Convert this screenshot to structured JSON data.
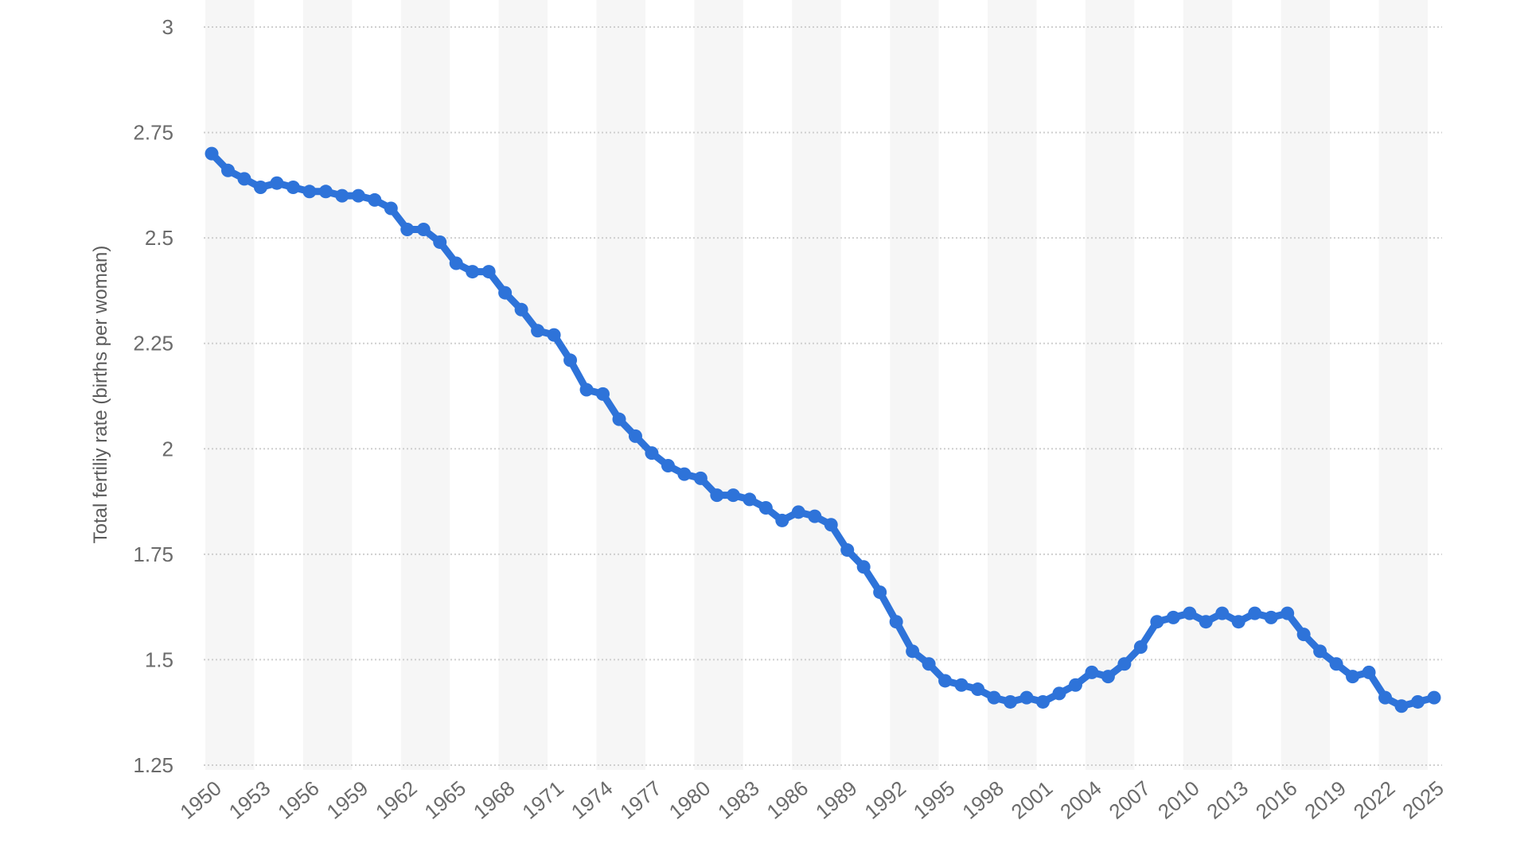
{
  "chart_data": {
    "type": "line",
    "title": "",
    "xlabel": "",
    "ylabel": "Total fertiliy rate (births per woman)",
    "ylim": [
      1.25,
      3
    ],
    "yticks": [
      "3",
      "2.75",
      "2.5",
      "2.25",
      "2",
      "1.75",
      "1.5",
      "1.25"
    ],
    "ytick_values": [
      3,
      2.75,
      2.5,
      2.25,
      2,
      1.75,
      1.5,
      1.25
    ],
    "xticks": [
      "1950",
      "1953",
      "1956",
      "1959",
      "1962",
      "1965",
      "1968",
      "1971",
      "1974",
      "1977",
      "1980",
      "1983",
      "1986",
      "1989",
      "1992",
      "1995",
      "1998",
      "2001",
      "2004",
      "2007",
      "2010",
      "2013",
      "2016",
      "2019",
      "2022",
      "2025"
    ],
    "xlim": [
      1950,
      2025
    ],
    "grid": true,
    "legend": "none",
    "color": "#2e73d9",
    "series": [
      {
        "x": [
          1950,
          1951,
          1952,
          1953,
          1954,
          1955,
          1956,
          1957,
          1958,
          1959,
          1960,
          1961,
          1962,
          1963,
          1964,
          1965,
          1966,
          1967,
          1968,
          1969,
          1970,
          1971,
          1972,
          1973,
          1974,
          1975,
          1976,
          1977,
          1978,
          1979,
          1980,
          1981,
          1982,
          1983,
          1984,
          1985,
          1986,
          1987,
          1988,
          1989,
          1990,
          1991,
          1992,
          1993,
          1994,
          1995,
          1996,
          1997,
          1998,
          1999,
          2000,
          2001,
          2002,
          2003,
          2004,
          2005,
          2006,
          2007,
          2008,
          2009,
          2010,
          2011,
          2012,
          2013,
          2014,
          2015,
          2016,
          2017,
          2018,
          2019,
          2020,
          2021,
          2022,
          2023,
          2024,
          2025
        ],
        "values": [
          2.7,
          2.66,
          2.64,
          2.62,
          2.63,
          2.62,
          2.61,
          2.61,
          2.6,
          2.6,
          2.59,
          2.57,
          2.52,
          2.52,
          2.49,
          2.44,
          2.42,
          2.42,
          2.37,
          2.33,
          2.28,
          2.27,
          2.21,
          2.14,
          2.13,
          2.07,
          2.03,
          1.99,
          1.96,
          1.94,
          1.93,
          1.89,
          1.89,
          1.88,
          1.86,
          1.83,
          1.85,
          1.84,
          1.82,
          1.76,
          1.72,
          1.66,
          1.59,
          1.52,
          1.49,
          1.45,
          1.44,
          1.43,
          1.41,
          1.4,
          1.41,
          1.4,
          1.42,
          1.44,
          1.47,
          1.46,
          1.49,
          1.53,
          1.59,
          1.6,
          1.61,
          1.59,
          1.61,
          1.59,
          1.61,
          1.6,
          1.61,
          1.56,
          1.52,
          1.49,
          1.46,
          1.47,
          1.41,
          1.39,
          1.4,
          1.41
        ]
      }
    ]
  }
}
